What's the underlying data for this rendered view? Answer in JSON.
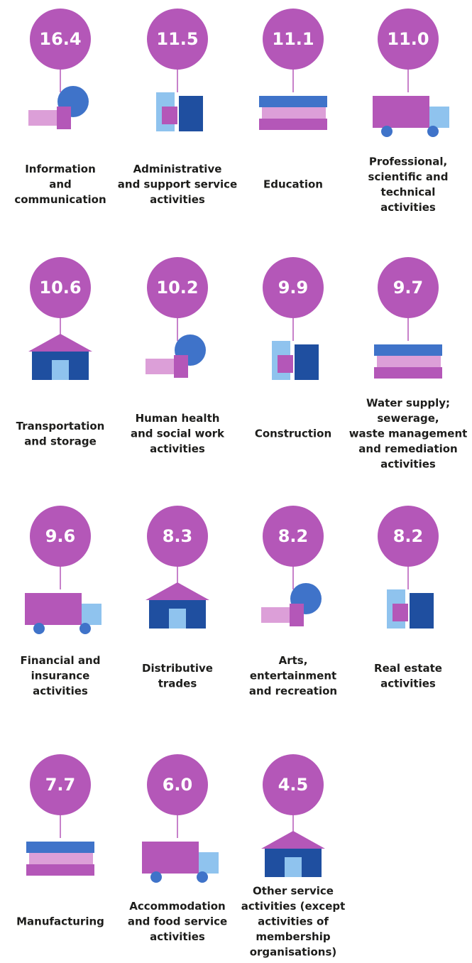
{
  "items": [
    {
      "value": "16.4",
      "label": [
        "Information",
        "and",
        "communication"
      ]
    },
    {
      "value": "11.5",
      "label": [
        "Administrative",
        "and support service",
        "activities"
      ]
    },
    {
      "value": "11.1",
      "label": [
        "Education"
      ]
    },
    {
      "value": "11.0",
      "label": [
        "Professional,",
        "scientific and",
        "technical",
        "activities"
      ]
    },
    {
      "value": "10.6",
      "label": [
        "Transportation",
        "and storage"
      ]
    },
    {
      "value": "10.2",
      "label": [
        "Human health",
        "and social work",
        "activities"
      ]
    },
    {
      "value": "9.9",
      "label": [
        "Construction"
      ]
    },
    {
      "value": "9.7",
      "label": [
        "Water supply;",
        "sewerage,",
        "waste management",
        "and remediation",
        "activities"
      ]
    },
    {
      "value": "9.6",
      "label": [
        "Financial and",
        "insurance",
        "activities"
      ]
    },
    {
      "value": "8.3",
      "label": [
        "Distributive",
        "trades"
      ]
    },
    {
      "value": "8.2",
      "label": [
        "Arts,",
        "entertainment",
        "and recreation"
      ]
    },
    {
      "value": "8.2",
      "label": [
        "Real estate",
        "activities"
      ]
    },
    {
      "value": "7.7",
      "label": [
        "Manufacturing"
      ]
    },
    {
      "value": "6.0",
      "label": [
        "Accommodation",
        "and food service",
        "activities"
      ]
    },
    {
      "value": "4.5",
      "label": [
        "Other service",
        "activities (except",
        "activities of",
        "membership",
        "organisations)"
      ]
    }
  ]
}
